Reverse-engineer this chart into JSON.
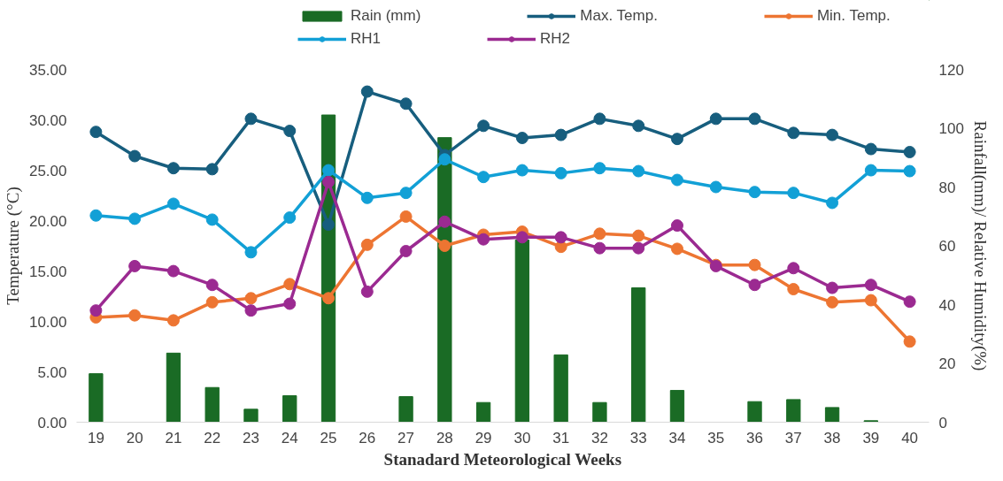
{
  "chart_data": {
    "type": "line",
    "xlabel": "Stanadard Meteorological Weeks",
    "ylabel": "Temperature (°C)",
    "y2label": "Rainfall(mm)/ Relative Humidity(%)",
    "categories": [
      "19",
      "20",
      "21",
      "22",
      "23",
      "24",
      "25",
      "26",
      "27",
      "28",
      "29",
      "30",
      "31",
      "32",
      "33",
      "34",
      "35",
      "36",
      "37",
      "38",
      "39",
      "40"
    ],
    "ylim": [
      0,
      35
    ],
    "yticks": [
      {
        "value": 0,
        "label": "0.00"
      },
      {
        "value": 5,
        "label": "5.00"
      },
      {
        "value": 10,
        "label": "10.00"
      },
      {
        "value": 15,
        "label": "15.00"
      },
      {
        "value": 20,
        "label": "20.00"
      },
      {
        "value": 25,
        "label": "25.00"
      },
      {
        "value": 30,
        "label": "30.00"
      },
      {
        "value": 35,
        "label": "35.00"
      }
    ],
    "y2lim": [
      0,
      120
    ],
    "y2ticks": [
      0,
      20,
      40,
      60,
      80,
      100,
      120
    ],
    "grid": false,
    "legend": "top",
    "marker": "circle",
    "line_style": "solid",
    "series": [
      {
        "name": "Rain (mm)",
        "type": "bar",
        "axis": "y2",
        "color": "#1a6b25",
        "values": [
          16.5,
          0,
          23.5,
          11.8,
          4.4,
          9,
          104.5,
          0,
          8.7,
          96.8,
          6.7,
          62,
          22.9,
          6.7,
          45.7,
          10.8,
          0,
          7,
          7.7,
          5,
          0.5,
          0
        ]
      },
      {
        "name": "Max. Temp.",
        "color": "#175e7e",
        "values": [
          28.8,
          26.4,
          25.2,
          25.1,
          30.1,
          28.9,
          19.6,
          32.8,
          31.6,
          26.5,
          29.4,
          28.2,
          28.5,
          30.1,
          29.4,
          28.1,
          30.1,
          30.1,
          28.7,
          28.5,
          27.1,
          26.8
        ]
      },
      {
        "name": "Min. Temp.",
        "color": "#ed7532",
        "values": [
          10.4,
          10.6,
          10.1,
          11.9,
          12.3,
          13.7,
          12.3,
          17.6,
          20.4,
          17.5,
          18.6,
          18.9,
          17.4,
          18.7,
          18.5,
          17.2,
          15.6,
          15.6,
          13.2,
          11.9,
          12.1,
          8.0
        ]
      },
      {
        "name": "RH1",
        "axis": "y2",
        "color": "#12a0d6",
        "values": [
          70.3,
          69.2,
          74.3,
          68.9,
          57.8,
          69.6,
          85.7,
          76.3,
          78,
          89.4,
          83.4,
          85.7,
          84.7,
          86.4,
          85.4,
          82.4,
          80,
          78.3,
          78,
          74.6,
          85.7,
          85.4
        ]
      },
      {
        "name": "RH2",
        "axis": "y2",
        "color": "#9b2a91",
        "values": [
          38,
          53.1,
          51.4,
          46.7,
          38,
          40.3,
          81.7,
          44.4,
          58.2,
          68.2,
          62.2,
          62.9,
          62.9,
          59.2,
          59.2,
          66.9,
          53.1,
          46.7,
          52.4,
          45.7,
          46.7,
          41
        ]
      }
    ]
  }
}
